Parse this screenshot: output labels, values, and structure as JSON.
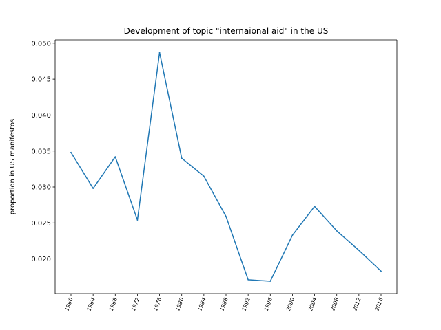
{
  "chart_data": {
    "type": "line",
    "title": "Development of topic \"internaional aid\" in the US",
    "xlabel": "",
    "ylabel": "proportion in US manifestos",
    "categories": [
      "1960",
      "1964",
      "1968",
      "1972",
      "1976",
      "1980",
      "1984",
      "1988",
      "1992",
      "1996",
      "2000",
      "2004",
      "2008",
      "2012",
      "2016"
    ],
    "series": [
      {
        "values": [
          0.0348,
          0.0298,
          0.0342,
          0.0254,
          0.0487,
          0.034,
          0.0315,
          0.0259,
          0.0171,
          0.0169,
          0.0233,
          0.0273,
          0.0239,
          0.0212,
          0.0183
        ],
        "color": "#1f77b4"
      }
    ],
    "yticks": [
      "0.020",
      "0.025",
      "0.030",
      "0.035",
      "0.040",
      "0.045",
      "0.050"
    ],
    "ylim": [
      0.01518,
      0.05046
    ],
    "grid": false,
    "legend": "none"
  }
}
